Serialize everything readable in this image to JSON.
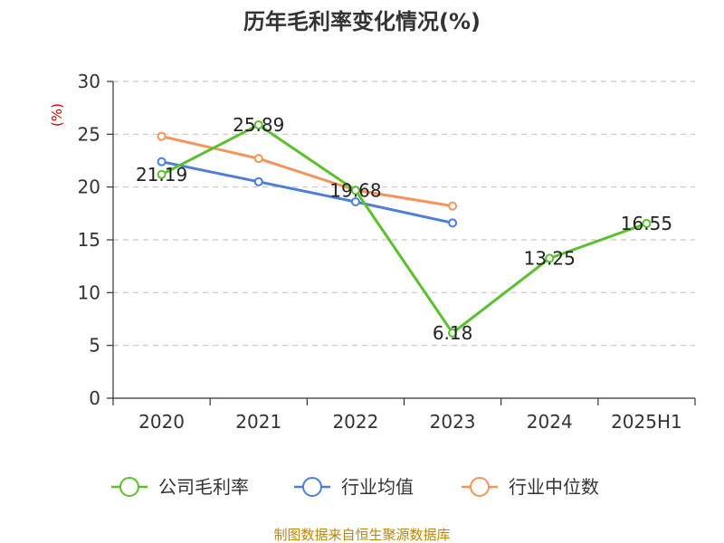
{
  "chart_data": {
    "type": "line",
    "title": "历年毛利率变化情况(%)",
    "ylabel": "(%)",
    "xlabel": "",
    "categories": [
      "2020",
      "2021",
      "2022",
      "2023",
      "2024",
      "2025H1"
    ],
    "ylim": [
      0,
      30
    ],
    "yticks": [
      0,
      5,
      10,
      15,
      20,
      25,
      30
    ],
    "grid": true,
    "legend_position": "bottom",
    "series": [
      {
        "name": "公司毛利率",
        "color": "#5ac02e",
        "values": [
          21.19,
          25.89,
          19.68,
          6.18,
          13.25,
          16.55
        ],
        "labels": [
          "21.19",
          "25.89",
          "19.68",
          "6.18",
          "13.25",
          "16.55"
        ]
      },
      {
        "name": "行业均值",
        "color": "#4b7fd8",
        "values": [
          22.4,
          20.5,
          18.6,
          16.6,
          null,
          null
        ]
      },
      {
        "name": "行业中位数",
        "color": "#f5935a",
        "values": [
          24.8,
          22.7,
          19.7,
          18.2,
          null,
          null
        ]
      }
    ],
    "source": "制图数据来自恒生聚源数据库"
  }
}
